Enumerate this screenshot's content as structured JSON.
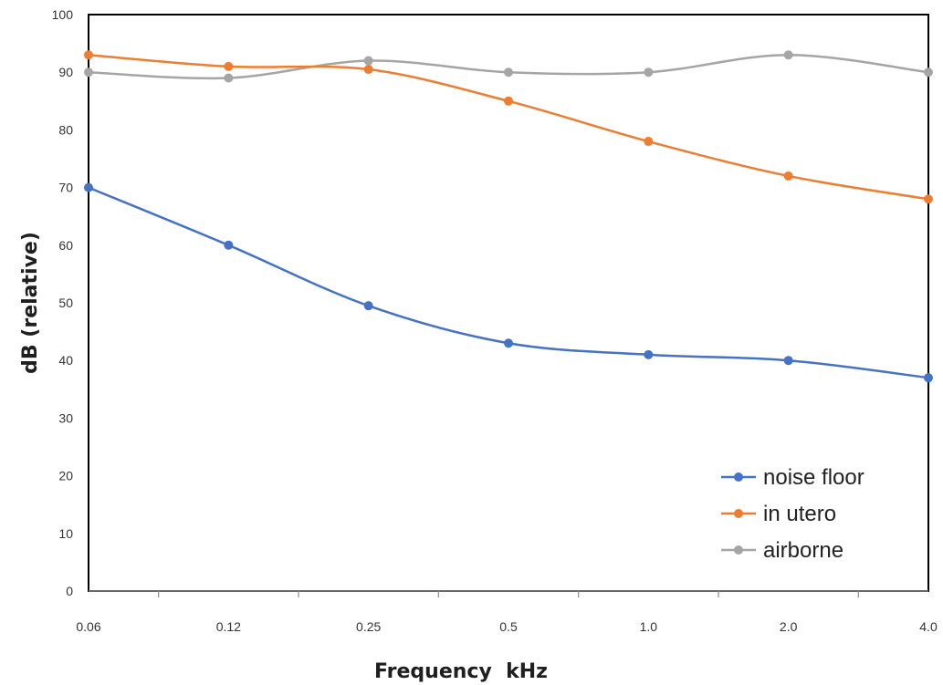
{
  "chart_data": {
    "type": "line",
    "title": "",
    "xlabel": "Frequency  kHz",
    "ylabel": "dB (relative)",
    "categories": [
      "0.06",
      "0.12",
      "0.25",
      "0.5",
      "1.0",
      "2.0",
      "4.0"
    ],
    "ylim": [
      0,
      100
    ],
    "yticks": [
      "0",
      "10",
      "20",
      "30",
      "40",
      "50",
      "60",
      "70",
      "80",
      "90",
      "100"
    ],
    "grid": false,
    "legend_position": "bottom-right",
    "smooth": true,
    "series": [
      {
        "name": "noise floor",
        "color": "#4472C4",
        "values": [
          70,
          60,
          49.5,
          43,
          41,
          40,
          37
        ]
      },
      {
        "name": "in utero",
        "color": "#ED7D31",
        "values": [
          93,
          91,
          90.5,
          85,
          78,
          72,
          68
        ]
      },
      {
        "name": "airborne",
        "color": "#A5A5A5",
        "values": [
          90,
          89,
          92,
          90,
          90,
          93,
          90
        ]
      }
    ]
  }
}
